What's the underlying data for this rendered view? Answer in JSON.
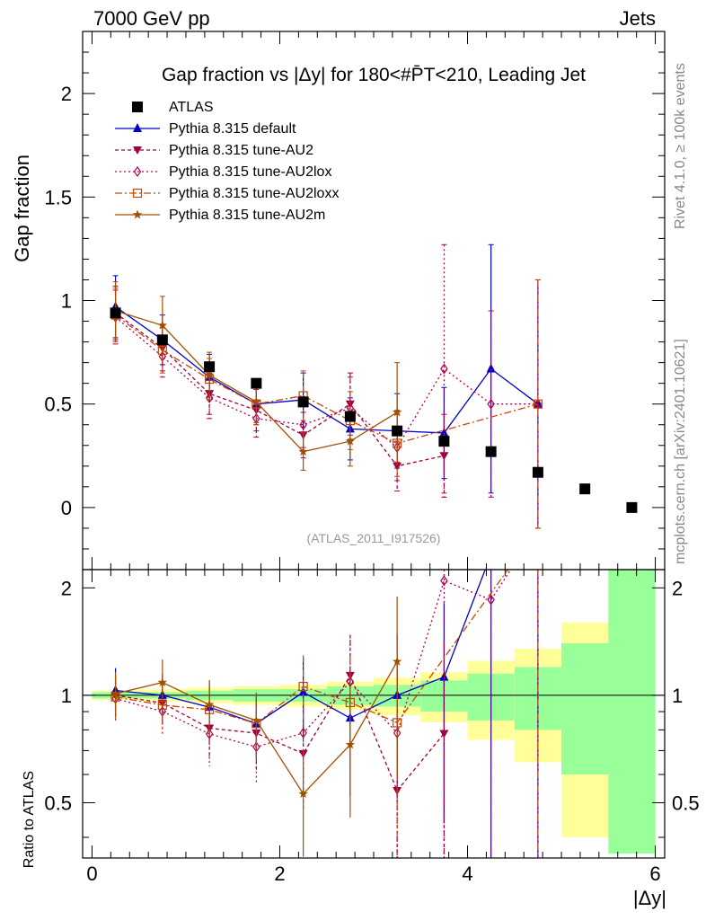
{
  "header": {
    "left": "7000 GeV pp",
    "right": "Jets"
  },
  "side_text": {
    "top": "Rivet 4.1.0, ≥ 100k events",
    "bottom": "mcplots.cern.ch [arXiv:2401.10621]"
  },
  "reference": "(ATLAS_2011_I917526)",
  "chart_data": {
    "type": "line",
    "title": "Gap fraction vs |Δy| for 180<#P̄T<210, Leading Jet",
    "xlabel": "|Δy|",
    "ylabel": "Gap fraction",
    "ratio_ylabel": "Ratio to ATLAS",
    "xlim": [
      -0.1,
      6.1
    ],
    "ylim": [
      -0.3,
      2.3
    ],
    "ratio_ylim": [
      0.35,
      2.25
    ],
    "x_ticks": [
      "0",
      "2",
      "4",
      "6"
    ],
    "y_ticks": [
      "0",
      "0.5",
      "1",
      "1.5",
      "2"
    ],
    "ratio_ticks": [
      "0.5",
      "1",
      "2"
    ],
    "data": {
      "name": "ATLAS",
      "x": [
        0.25,
        0.75,
        1.25,
        1.75,
        2.25,
        2.75,
        3.25,
        3.75,
        4.25,
        4.75,
        5.25,
        5.75
      ],
      "y": [
        0.94,
        0.81,
        0.68,
        0.6,
        0.51,
        0.44,
        0.37,
        0.32,
        0.27,
        0.17,
        0.09,
        0.0
      ],
      "band_inner": [
        0.02,
        0.02,
        0.03,
        0.04,
        0.04,
        0.06,
        0.07,
        0.1,
        0.15,
        0.2,
        0.4,
        1.5
      ],
      "band_outer": [
        0.03,
        0.04,
        0.05,
        0.06,
        0.07,
        0.09,
        0.12,
        0.16,
        0.25,
        0.35,
        0.6,
        2.5
      ]
    },
    "series": [
      {
        "name": "Pythia 8.315 default",
        "color": "#0000cc",
        "marker": "triangle-up",
        "dash": "",
        "x": [
          0.25,
          0.75,
          1.25,
          1.75,
          2.25,
          2.75,
          3.25,
          3.75,
          4.25,
          4.75
        ],
        "y": [
          0.97,
          0.81,
          0.63,
          0.5,
          0.52,
          0.38,
          0.37,
          0.36,
          0.67,
          0.5
        ],
        "err": [
          0.15,
          0.12,
          0.11,
          0.1,
          0.13,
          0.15,
          0.18,
          0.22,
          0.6,
          0.6
        ]
      },
      {
        "name": "Pythia 8.315 tune-AU2",
        "color": "#a0003c",
        "marker": "triangle-down",
        "dash": "4,3",
        "x": [
          0.25,
          0.75,
          1.25,
          1.75,
          2.25,
          2.75,
          3.25,
          3.75
        ],
        "y": [
          0.94,
          0.77,
          0.55,
          0.47,
          0.35,
          0.5,
          0.2,
          0.25
        ],
        "err": [
          0.13,
          0.11,
          0.1,
          0.1,
          0.11,
          0.15,
          0.12,
          0.2
        ]
      },
      {
        "name": "Pythia 8.315 tune-AU2lox",
        "color": "#b2004a",
        "marker": "diamond-open",
        "dash": "2,3",
        "x": [
          0.25,
          0.75,
          1.25,
          1.75,
          2.25,
          2.75,
          3.25,
          3.75,
          4.25,
          4.75
        ],
        "y": [
          0.92,
          0.73,
          0.53,
          0.43,
          0.4,
          0.48,
          0.29,
          0.67,
          0.5,
          0.5
        ],
        "err": [
          0.13,
          0.1,
          0.1,
          0.09,
          0.11,
          0.15,
          0.16,
          0.6,
          0.45,
          0.6
        ]
      },
      {
        "name": "Pythia 8.315 tune-AU2loxx",
        "color": "#cc4400",
        "marker": "square-open",
        "dash": "8,3,2,3",
        "x": [
          0.25,
          0.75,
          1.25,
          1.75,
          2.25,
          2.75,
          3.25,
          4.75
        ],
        "y": [
          0.93,
          0.76,
          0.62,
          0.5,
          0.54,
          0.42,
          0.31,
          0.5
        ],
        "err": [
          0.13,
          0.11,
          0.1,
          0.1,
          0.12,
          0.14,
          0.16,
          0.6
        ]
      },
      {
        "name": "Pythia 8.315 tune-AU2m",
        "color": "#a05000",
        "marker": "star",
        "dash": "",
        "x": [
          0.25,
          0.75,
          1.25,
          1.75,
          2.25,
          2.75,
          3.25
        ],
        "y": [
          0.95,
          0.88,
          0.64,
          0.51,
          0.27,
          0.32,
          0.46
        ],
        "err": [
          0.14,
          0.14,
          0.11,
          0.1,
          0.09,
          0.12,
          0.24
        ]
      }
    ]
  }
}
